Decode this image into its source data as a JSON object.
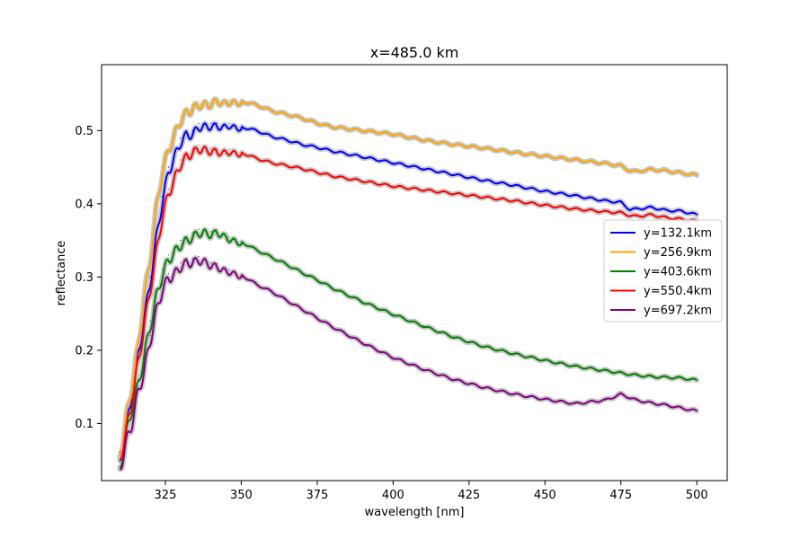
{
  "chart_data": {
    "type": "line",
    "title": "x=485.0 km",
    "xlabel": "wavelength [nm]",
    "ylabel": "reflectance",
    "xlim": [
      304,
      510
    ],
    "ylim": [
      0.022,
      0.59
    ],
    "xticks": [
      325,
      350,
      375,
      400,
      425,
      450,
      475,
      500
    ],
    "yticks": [
      0.1,
      0.2,
      0.3,
      0.4,
      0.5
    ],
    "xtick_labels": [
      "325",
      "350",
      "375",
      "400",
      "425",
      "450",
      "475",
      "500"
    ],
    "ytick_labels": [
      "0.1",
      "0.2",
      "0.3",
      "0.4",
      "0.5"
    ],
    "grid": false,
    "legend_position": "center-right",
    "uncertainty_band_color": "#c8c8c8",
    "oscillation_region_nm": [
      310,
      350
    ],
    "series": [
      {
        "name": "y=132.1km",
        "color": "#0000ff",
        "x": [
          310,
          312,
          314,
          316,
          318,
          320,
          322,
          324,
          326,
          328,
          330,
          332,
          334,
          336,
          338,
          340,
          342,
          344,
          346,
          348,
          350,
          355,
          360,
          365,
          370,
          375,
          380,
          390,
          400,
          410,
          420,
          430,
          440,
          450,
          460,
          470,
          475,
          478,
          480,
          485,
          490,
          495,
          500
        ],
        "y": [
          0.06,
          0.1,
          0.15,
          0.2,
          0.25,
          0.3,
          0.36,
          0.41,
          0.45,
          0.47,
          0.49,
          0.5,
          0.5,
          0.51,
          0.51,
          0.51,
          0.51,
          0.508,
          0.51,
          0.507,
          0.505,
          0.5,
          0.492,
          0.487,
          0.481,
          0.477,
          0.472,
          0.464,
          0.456,
          0.448,
          0.44,
          0.432,
          0.425,
          0.417,
          0.411,
          0.404,
          0.402,
          0.392,
          0.393,
          0.395,
          0.391,
          0.39,
          0.385
        ]
      },
      {
        "name": "y=256.9km",
        "color": "#ffa500",
        "x": [
          310,
          312,
          314,
          316,
          318,
          320,
          322,
          324,
          326,
          328,
          330,
          332,
          334,
          336,
          338,
          340,
          342,
          344,
          346,
          348,
          350,
          355,
          360,
          365,
          370,
          375,
          380,
          390,
          400,
          410,
          420,
          430,
          440,
          450,
          460,
          470,
          475,
          478,
          480,
          485,
          490,
          495,
          500
        ],
        "y": [
          0.065,
          0.11,
          0.16,
          0.21,
          0.28,
          0.33,
          0.4,
          0.45,
          0.48,
          0.5,
          0.52,
          0.53,
          0.535,
          0.54,
          0.54,
          0.54,
          0.545,
          0.54,
          0.542,
          0.541,
          0.54,
          0.535,
          0.527,
          0.522,
          0.517,
          0.51,
          0.505,
          0.5,
          0.495,
          0.487,
          0.481,
          0.476,
          0.47,
          0.465,
          0.46,
          0.455,
          0.452,
          0.445,
          0.444,
          0.447,
          0.445,
          0.442,
          0.439
        ]
      },
      {
        "name": "y=403.6km",
        "color": "#008000",
        "x": [
          310,
          312,
          314,
          316,
          318,
          320,
          322,
          324,
          326,
          328,
          330,
          332,
          334,
          336,
          338,
          340,
          342,
          344,
          346,
          348,
          350,
          355,
          360,
          365,
          370,
          375,
          380,
          390,
          400,
          410,
          420,
          430,
          440,
          450,
          460,
          470,
          475,
          478,
          480,
          485,
          490,
          495,
          500
        ],
        "y": [
          0.05,
          0.09,
          0.13,
          0.16,
          0.2,
          0.24,
          0.28,
          0.31,
          0.33,
          0.34,
          0.35,
          0.355,
          0.36,
          0.365,
          0.365,
          0.362,
          0.365,
          0.36,
          0.355,
          0.352,
          0.348,
          0.337,
          0.327,
          0.317,
          0.306,
          0.296,
          0.285,
          0.266,
          0.249,
          0.233,
          0.218,
          0.205,
          0.195,
          0.186,
          0.178,
          0.172,
          0.169,
          0.167,
          0.166,
          0.164,
          0.163,
          0.162,
          0.159
        ]
      },
      {
        "name": "y=550.4km",
        "color": "#ff0000",
        "x": [
          310,
          312,
          314,
          316,
          318,
          320,
          322,
          324,
          326,
          328,
          330,
          332,
          334,
          336,
          338,
          340,
          342,
          344,
          346,
          348,
          350,
          355,
          360,
          365,
          370,
          375,
          380,
          390,
          400,
          410,
          420,
          430,
          440,
          450,
          460,
          470,
          475,
          478,
          480,
          485,
          490,
          495,
          500
        ],
        "y": [
          0.062,
          0.095,
          0.14,
          0.19,
          0.24,
          0.29,
          0.34,
          0.39,
          0.42,
          0.44,
          0.46,
          0.47,
          0.475,
          0.48,
          0.478,
          0.476,
          0.475,
          0.473,
          0.474,
          0.472,
          0.47,
          0.462,
          0.456,
          0.452,
          0.448,
          0.443,
          0.438,
          0.431,
          0.424,
          0.419,
          0.414,
          0.409,
          0.404,
          0.398,
          0.393,
          0.389,
          0.388,
          0.384,
          0.383,
          0.385,
          0.381,
          0.379,
          0.376
        ]
      },
      {
        "name": "y=697.2km",
        "color": "#800080",
        "x": [
          310,
          312,
          314,
          316,
          318,
          320,
          322,
          324,
          326,
          328,
          330,
          332,
          334,
          336,
          338,
          340,
          342,
          344,
          346,
          348,
          350,
          355,
          360,
          365,
          370,
          375,
          380,
          390,
          400,
          410,
          420,
          430,
          440,
          450,
          460,
          470,
          475,
          478,
          480,
          485,
          490,
          495,
          500
        ],
        "y": [
          0.048,
          0.08,
          0.11,
          0.15,
          0.18,
          0.22,
          0.26,
          0.29,
          0.305,
          0.31,
          0.32,
          0.325,
          0.325,
          0.328,
          0.325,
          0.32,
          0.318,
          0.313,
          0.31,
          0.307,
          0.303,
          0.29,
          0.28,
          0.268,
          0.256,
          0.244,
          0.232,
          0.21,
          0.19,
          0.174,
          0.16,
          0.149,
          0.14,
          0.133,
          0.127,
          0.132,
          0.14,
          0.135,
          0.132,
          0.128,
          0.125,
          0.121,
          0.117
        ]
      }
    ]
  }
}
